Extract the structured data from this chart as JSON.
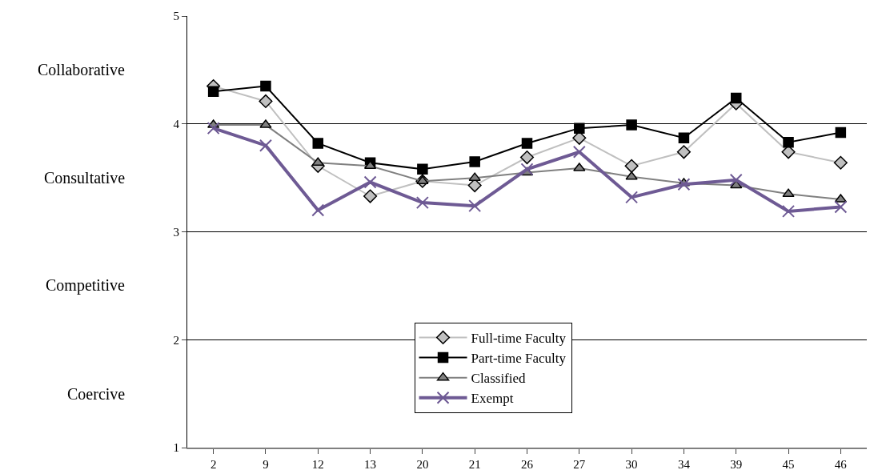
{
  "chart_data": {
    "type": "line",
    "categories": [
      "2",
      "9",
      "12",
      "13",
      "20",
      "21",
      "26",
      "27",
      "30",
      "34",
      "39",
      "45",
      "46"
    ],
    "series": [
      {
        "name": "Full-time Faculty",
        "color": "#c0c0c0",
        "marker": "diamond",
        "values": [
          4.35,
          4.21,
          3.61,
          3.33,
          3.47,
          3.43,
          3.69,
          3.87,
          3.61,
          3.74,
          4.19,
          3.74,
          3.64
        ]
      },
      {
        "name": "Part-time Faculty",
        "color": "#000000",
        "marker": "square",
        "values": [
          4.3,
          4.35,
          3.82,
          3.64,
          3.58,
          3.65,
          3.82,
          3.96,
          3.99,
          3.87,
          4.24,
          3.83,
          3.92
        ]
      },
      {
        "name": "Classified",
        "color": "#808080",
        "marker": "triangle",
        "values": [
          3.99,
          3.99,
          3.64,
          3.61,
          3.47,
          3.5,
          3.55,
          3.59,
          3.51,
          3.45,
          3.43,
          3.35,
          3.3
        ]
      },
      {
        "name": "Exempt",
        "color": "#6e5a94",
        "marker": "cross",
        "values": [
          3.96,
          3.8,
          3.2,
          3.46,
          3.27,
          3.24,
          3.58,
          3.74,
          3.32,
          3.44,
          3.48,
          3.19,
          3.23
        ]
      }
    ],
    "ylim": [
      1,
      5
    ],
    "yticks": [
      1,
      2,
      3,
      4,
      5
    ],
    "annotations": [
      "Collaborative",
      "Consultative",
      "Competitive",
      "Coercive"
    ],
    "grid": "y",
    "legend": "bottom",
    "line_style": "solid"
  }
}
